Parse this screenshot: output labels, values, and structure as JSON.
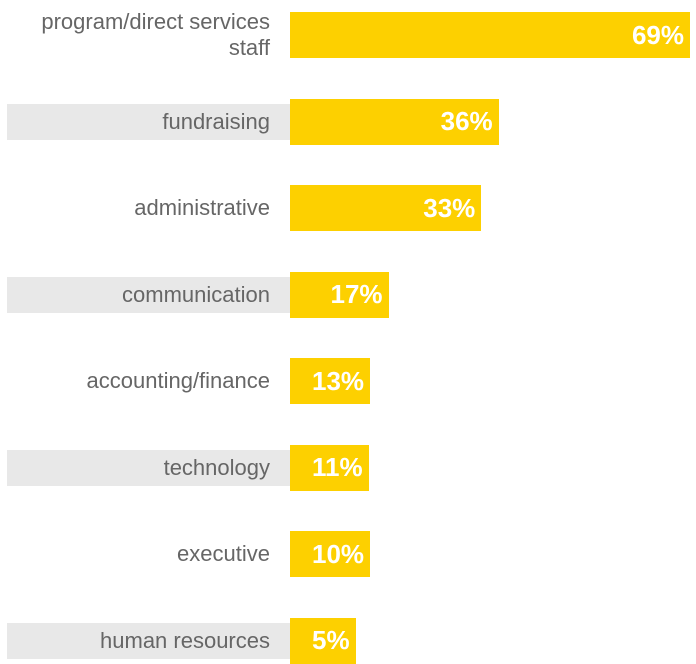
{
  "chart_data": {
    "type": "bar",
    "orientation": "horizontal",
    "categories": [
      "program/direct services staff",
      "fundraising",
      "administrative",
      "communication",
      "accounting/finance",
      "technology",
      "executive",
      "human resources"
    ],
    "values": [
      69,
      36,
      33,
      17,
      13,
      11,
      10,
      5
    ],
    "value_labels": [
      "69%",
      "36%",
      "33%",
      "17%",
      "13%",
      "11%",
      "10%",
      "5%"
    ],
    "color": "#fdd000"
  }
}
